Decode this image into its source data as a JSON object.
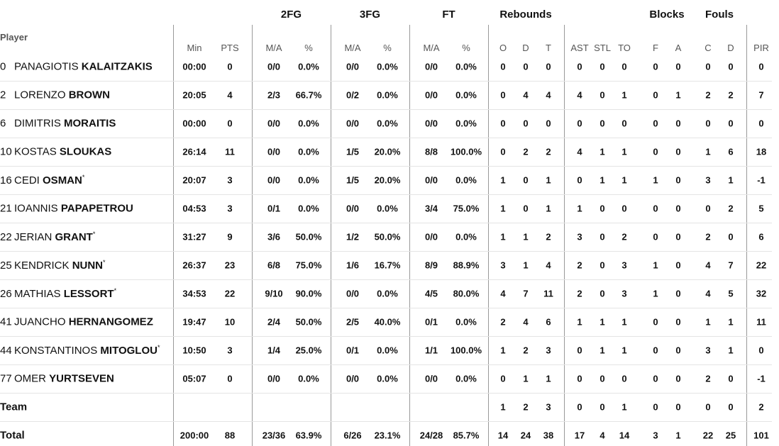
{
  "groups": [
    "2FG",
    "3FG",
    "FT",
    "Rebounds",
    "Blocks",
    "Fouls"
  ],
  "columns": [
    "Player",
    "Min",
    "PTS",
    "M/A",
    "%",
    "M/A",
    "%",
    "M/A",
    "%",
    "O",
    "D",
    "T",
    "AST",
    "STL",
    "TO",
    "F",
    "A",
    "C",
    "D",
    "PIR"
  ],
  "rows": [
    {
      "number": "0",
      "first": "PANAGIOTIS",
      "last": "KALAITZAKIS",
      "stats": [
        "00:00",
        "0",
        "0/0",
        "0.0%",
        "0/0",
        "0.0%",
        "0/0",
        "0.0%",
        "0",
        "0",
        "0",
        "0",
        "0",
        "0",
        "0",
        "0",
        "0",
        "0",
        "0"
      ]
    },
    {
      "number": "2",
      "first": "LORENZO",
      "last": "BROWN",
      "stats": [
        "20:05",
        "4",
        "2/3",
        "66.7%",
        "0/2",
        "0.0%",
        "0/0",
        "0.0%",
        "0",
        "4",
        "4",
        "4",
        "0",
        "1",
        "0",
        "1",
        "2",
        "2",
        "7"
      ]
    },
    {
      "number": "6",
      "first": "DIMITRIS",
      "last": "MORAITIS",
      "stats": [
        "00:00",
        "0",
        "0/0",
        "0.0%",
        "0/0",
        "0.0%",
        "0/0",
        "0.0%",
        "0",
        "0",
        "0",
        "0",
        "0",
        "0",
        "0",
        "0",
        "0",
        "0",
        "0"
      ]
    },
    {
      "number": "10",
      "first": "KOSTAS",
      "last": "SLOUKAS",
      "stats": [
        "26:14",
        "11",
        "0/0",
        "0.0%",
        "1/5",
        "20.0%",
        "8/8",
        "100.0%",
        "0",
        "2",
        "2",
        "4",
        "1",
        "1",
        "0",
        "0",
        "1",
        "6",
        "18"
      ]
    },
    {
      "number": "16",
      "first": "CEDI",
      "last": "OSMAN",
      "starter": "*",
      "stats": [
        "20:07",
        "3",
        "0/0",
        "0.0%",
        "1/5",
        "20.0%",
        "0/0",
        "0.0%",
        "1",
        "0",
        "1",
        "0",
        "1",
        "1",
        "1",
        "0",
        "3",
        "1",
        "-1"
      ]
    },
    {
      "number": "21",
      "first": "IOANNIS",
      "last": "PAPAPETROU",
      "stats": [
        "04:53",
        "3",
        "0/1",
        "0.0%",
        "0/0",
        "0.0%",
        "3/4",
        "75.0%",
        "1",
        "0",
        "1",
        "1",
        "0",
        "0",
        "0",
        "0",
        "0",
        "2",
        "5"
      ]
    },
    {
      "number": "22",
      "first": "JERIAN",
      "last": "GRANT",
      "starter": "*",
      "stats": [
        "31:27",
        "9",
        "3/6",
        "50.0%",
        "1/2",
        "50.0%",
        "0/0",
        "0.0%",
        "1",
        "1",
        "2",
        "3",
        "0",
        "2",
        "0",
        "0",
        "2",
        "0",
        "6"
      ]
    },
    {
      "number": "25",
      "first": "KENDRICK",
      "last": "NUNN",
      "starter": "*",
      "stats": [
        "26:37",
        "23",
        "6/8",
        "75.0%",
        "1/6",
        "16.7%",
        "8/9",
        "88.9%",
        "3",
        "1",
        "4",
        "2",
        "0",
        "3",
        "1",
        "0",
        "4",
        "7",
        "22"
      ]
    },
    {
      "number": "26",
      "first": "MATHIAS",
      "last": "LESSORT",
      "starter": "*",
      "stats": [
        "34:53",
        "22",
        "9/10",
        "90.0%",
        "0/0",
        "0.0%",
        "4/5",
        "80.0%",
        "4",
        "7",
        "11",
        "2",
        "0",
        "3",
        "1",
        "0",
        "4",
        "5",
        "32"
      ]
    },
    {
      "number": "41",
      "first": "JUANCHO",
      "last": "HERNANGOMEZ",
      "stats": [
        "19:47",
        "10",
        "2/4",
        "50.0%",
        "2/5",
        "40.0%",
        "0/1",
        "0.0%",
        "2",
        "4",
        "6",
        "1",
        "1",
        "1",
        "0",
        "0",
        "1",
        "1",
        "11"
      ]
    },
    {
      "number": "44",
      "first": "KONSTANTINOS",
      "last": "MITOGLOU",
      "starter": "*",
      "stats": [
        "10:50",
        "3",
        "1/4",
        "25.0%",
        "0/1",
        "0.0%",
        "1/1",
        "100.0%",
        "1",
        "2",
        "3",
        "0",
        "1",
        "1",
        "0",
        "0",
        "3",
        "1",
        "0"
      ]
    },
    {
      "number": "77",
      "first": "OMER",
      "last": "YURTSEVEN",
      "stats": [
        "05:07",
        "0",
        "0/0",
        "0.0%",
        "0/0",
        "0.0%",
        "0/0",
        "0.0%",
        "0",
        "1",
        "1",
        "0",
        "0",
        "0",
        "0",
        "0",
        "2",
        "0",
        "-1"
      ]
    },
    {
      "label": "Team",
      "stats": [
        null,
        null,
        null,
        null,
        null,
        null,
        null,
        null,
        "1",
        "2",
        "3",
        "0",
        "0",
        "1",
        "0",
        "0",
        "0",
        "0",
        "2"
      ]
    },
    {
      "label": "Total",
      "stats": [
        "200:00",
        "88",
        "23/36",
        "63.9%",
        "6/26",
        "23.1%",
        "24/28",
        "85.7%",
        "14",
        "24",
        "38",
        "17",
        "4",
        "14",
        "3",
        "1",
        "22",
        "25",
        "101"
      ]
    }
  ]
}
